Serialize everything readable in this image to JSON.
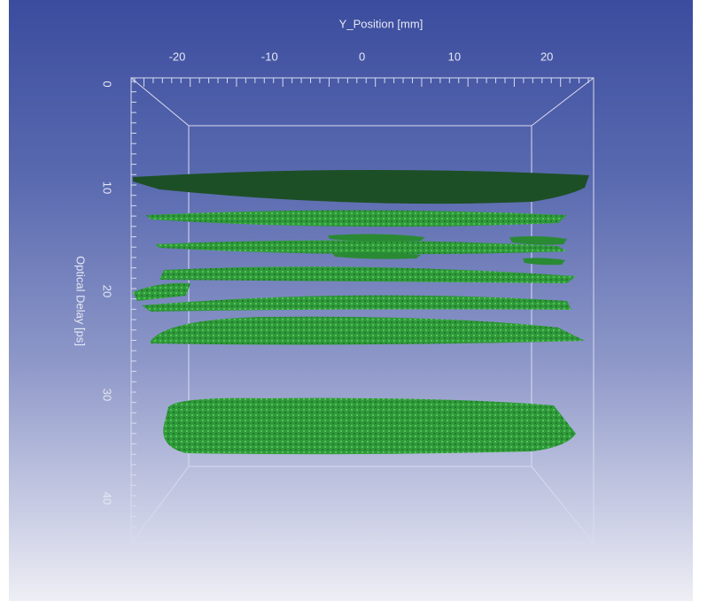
{
  "x_axis": {
    "label": "Y_Position [mm]",
    "ticks": [
      "-20",
      "-10",
      "0",
      "10",
      "20"
    ]
  },
  "y_axis": {
    "label": "Optical Delay [ps]",
    "ticks": [
      "0",
      "10",
      "20",
      "30",
      "40"
    ]
  }
}
